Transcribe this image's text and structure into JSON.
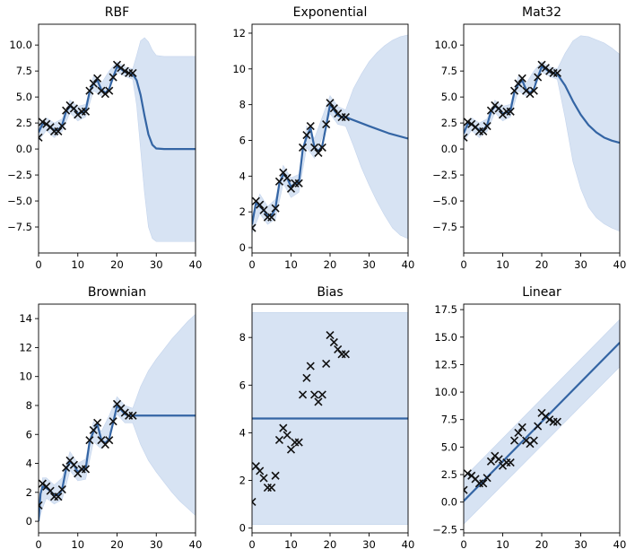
{
  "figure": {
    "layout": "2x3 grid of Gaussian process regression panels",
    "band_color": "#d7e3f3",
    "line_color": "#3465a4",
    "marker_color": "#111111",
    "observations": {
      "x": [
        0,
        1,
        2,
        3,
        4,
        5,
        6,
        7,
        8,
        9,
        10,
        11,
        12,
        13,
        14,
        15,
        16,
        17,
        18,
        19,
        20,
        21,
        22,
        23,
        24
      ],
      "y": [
        1.1,
        2.6,
        2.4,
        2.1,
        1.7,
        1.7,
        2.2,
        3.7,
        4.2,
        3.9,
        3.3,
        3.6,
        3.6,
        5.6,
        6.3,
        6.8,
        5.6,
        5.3,
        5.6,
        6.9,
        8.1,
        7.8,
        7.5,
        7.3,
        7.3
      ]
    }
  },
  "chart_data": [
    {
      "type": "line",
      "title": "RBF",
      "xlim": [
        0,
        40
      ],
      "ylim": [
        -10,
        12
      ],
      "xticks": [
        0,
        10,
        20,
        30,
        40
      ],
      "yticks": [
        -7.5,
        -5.0,
        -2.5,
        0.0,
        2.5,
        5.0,
        7.5,
        10.0
      ],
      "mean": {
        "x": [
          0,
          1,
          2,
          3,
          4,
          5,
          6,
          7,
          8,
          9,
          10,
          11,
          12,
          13,
          14,
          15,
          16,
          17,
          18,
          19,
          20,
          21,
          22,
          23,
          24,
          25,
          26,
          27,
          28,
          29,
          30,
          32,
          34,
          36,
          38,
          40
        ],
        "y": [
          1.6,
          2.4,
          2.4,
          2.1,
          1.8,
          1.8,
          2.3,
          3.6,
          4.1,
          3.9,
          3.4,
          3.5,
          3.7,
          5.5,
          6.3,
          6.6,
          5.7,
          5.4,
          5.8,
          6.9,
          7.9,
          7.7,
          7.4,
          7.3,
          7.2,
          6.6,
          5.2,
          3.2,
          1.4,
          0.4,
          0.05,
          0,
          0,
          0,
          0,
          0
        ]
      },
      "upper": {
        "x": [
          0,
          2,
          4,
          6,
          8,
          10,
          12,
          14,
          16,
          18,
          20,
          22,
          24,
          25,
          26,
          27,
          28,
          29,
          30,
          32,
          34,
          36,
          38,
          40
        ],
        "y": [
          2.4,
          3.0,
          2.5,
          2.9,
          4.7,
          4.1,
          4.3,
          7.0,
          6.3,
          7.5,
          8.4,
          7.9,
          7.7,
          9.0,
          10.4,
          10.7,
          10.3,
          9.5,
          9.0,
          8.9,
          8.9,
          8.9,
          8.9,
          8.9
        ]
      },
      "lower": {
        "x": [
          0,
          2,
          4,
          6,
          8,
          10,
          12,
          14,
          16,
          18,
          20,
          22,
          24,
          25,
          26,
          27,
          28,
          29,
          30,
          32,
          34,
          36,
          38,
          40
        ],
        "y": [
          0.8,
          1.8,
          1.1,
          1.7,
          3.5,
          2.7,
          3.1,
          5.6,
          5.1,
          6.3,
          7.4,
          7.0,
          6.7,
          4.2,
          0.0,
          -4.2,
          -7.5,
          -8.6,
          -8.9,
          -8.9,
          -8.9,
          -8.9,
          -8.9,
          -8.9
        ]
      }
    },
    {
      "type": "line",
      "title": "Exponential",
      "xlim": [
        0,
        40
      ],
      "ylim": [
        -0.3,
        12.5
      ],
      "xticks": [
        0,
        10,
        20,
        30,
        40
      ],
      "yticks": [
        0,
        2,
        4,
        6,
        8,
        10,
        12
      ],
      "mean": {
        "x": [
          0,
          1,
          2,
          3,
          4,
          5,
          6,
          7,
          8,
          9,
          10,
          11,
          12,
          13,
          14,
          15,
          16,
          17,
          18,
          19,
          20,
          21,
          22,
          23,
          24,
          30,
          35,
          40
        ],
        "y": [
          1.3,
          2.5,
          2.3,
          2.1,
          1.8,
          1.8,
          2.2,
          3.6,
          4.1,
          3.9,
          3.4,
          3.6,
          3.6,
          5.5,
          6.2,
          6.7,
          5.6,
          5.4,
          5.7,
          6.8,
          8.0,
          7.7,
          7.4,
          7.3,
          7.3,
          6.8,
          6.4,
          6.1
        ]
      },
      "upper": {
        "x": [
          0,
          2,
          4,
          6,
          8,
          10,
          12,
          14,
          16,
          18,
          20,
          22,
          24,
          26,
          28,
          30,
          32,
          34,
          36,
          38,
          40
        ],
        "y": [
          1.8,
          3.0,
          2.3,
          2.7,
          4.6,
          3.9,
          4.1,
          6.8,
          6.1,
          7.3,
          8.5,
          7.9,
          7.7,
          8.9,
          9.7,
          10.4,
          10.9,
          11.3,
          11.6,
          11.8,
          11.9
        ]
      },
      "lower": {
        "x": [
          0,
          2,
          4,
          6,
          8,
          10,
          12,
          14,
          16,
          18,
          20,
          22,
          24,
          26,
          28,
          30,
          32,
          34,
          36,
          38,
          40
        ],
        "y": [
          0.8,
          1.9,
          1.3,
          1.6,
          3.6,
          2.8,
          3.1,
          5.6,
          5.0,
          6.2,
          7.5,
          6.9,
          6.8,
          5.7,
          4.5,
          3.5,
          2.6,
          1.8,
          1.1,
          0.7,
          0.5
        ]
      }
    },
    {
      "type": "line",
      "title": "Mat32",
      "xlim": [
        0,
        40
      ],
      "ylim": [
        -10,
        12
      ],
      "xticks": [
        0,
        10,
        20,
        30,
        40
      ],
      "yticks": [
        -7.5,
        -5.0,
        -2.5,
        0.0,
        2.5,
        5.0,
        7.5,
        10.0
      ],
      "mean": {
        "x": [
          0,
          1,
          2,
          3,
          4,
          5,
          6,
          7,
          8,
          9,
          10,
          11,
          12,
          13,
          14,
          15,
          16,
          17,
          18,
          19,
          20,
          21,
          22,
          23,
          24,
          26,
          28,
          30,
          32,
          34,
          36,
          38,
          40
        ],
        "y": [
          1.5,
          2.4,
          2.4,
          2.1,
          1.8,
          1.8,
          2.3,
          3.6,
          4.1,
          3.9,
          3.4,
          3.5,
          3.7,
          5.5,
          6.2,
          6.6,
          5.7,
          5.4,
          5.8,
          6.9,
          7.9,
          7.7,
          7.4,
          7.3,
          7.2,
          6.1,
          4.6,
          3.3,
          2.3,
          1.6,
          1.1,
          0.8,
          0.6
        ]
      },
      "upper": {
        "x": [
          0,
          2,
          4,
          6,
          8,
          10,
          12,
          14,
          16,
          18,
          20,
          22,
          24,
          26,
          28,
          30,
          32,
          34,
          36,
          38,
          40
        ],
        "y": [
          2.3,
          3.0,
          2.5,
          2.9,
          4.7,
          4.1,
          4.3,
          7.0,
          6.3,
          7.5,
          8.4,
          7.9,
          7.7,
          9.2,
          10.4,
          10.9,
          10.8,
          10.5,
          10.2,
          9.7,
          9.1
        ]
      },
      "lower": {
        "x": [
          0,
          2,
          4,
          6,
          8,
          10,
          12,
          14,
          16,
          18,
          20,
          22,
          24,
          26,
          28,
          30,
          32,
          34,
          36,
          38,
          40
        ],
        "y": [
          0.7,
          1.8,
          1.1,
          1.7,
          3.5,
          2.7,
          3.1,
          5.6,
          5.1,
          6.3,
          7.4,
          7.0,
          6.7,
          3.0,
          -1.2,
          -3.8,
          -5.6,
          -6.6,
          -7.2,
          -7.6,
          -7.9
        ]
      }
    },
    {
      "type": "line",
      "title": "Brownian",
      "xlim": [
        0,
        40
      ],
      "ylim": [
        -0.8,
        15
      ],
      "xticks": [
        0,
        10,
        20,
        30,
        40
      ],
      "yticks": [
        0,
        2,
        4,
        6,
        8,
        10,
        12,
        14
      ],
      "mean": {
        "x": [
          0,
          0.5,
          1,
          2,
          3,
          4,
          5,
          6,
          7,
          8,
          9,
          10,
          11,
          12,
          13,
          14,
          15,
          16,
          17,
          18,
          19,
          20,
          21,
          22,
          23,
          24,
          40
        ],
        "y": [
          0.0,
          1.9,
          2.4,
          2.3,
          2.1,
          1.8,
          1.8,
          2.2,
          3.6,
          4.1,
          3.9,
          3.4,
          3.6,
          3.6,
          5.5,
          6.2,
          6.7,
          5.6,
          5.4,
          5.7,
          6.8,
          8.0,
          7.7,
          7.4,
          7.3,
          7.3,
          7.3
        ]
      },
      "upper": {
        "x": [
          0,
          1,
          2,
          4,
          6,
          8,
          10,
          12,
          14,
          16,
          18,
          20,
          22,
          24,
          26,
          28,
          30,
          32,
          34,
          36,
          38,
          40
        ],
        "y": [
          0.0,
          3.0,
          3.0,
          2.5,
          3.0,
          4.8,
          4.0,
          4.3,
          6.9,
          6.2,
          7.3,
          8.6,
          8.0,
          7.8,
          9.3,
          10.4,
          11.2,
          11.9,
          12.6,
          13.2,
          13.8,
          14.3
        ]
      },
      "lower": {
        "x": [
          0,
          1,
          2,
          4,
          6,
          8,
          10,
          12,
          14,
          16,
          18,
          20,
          22,
          24,
          26,
          28,
          30,
          32,
          34,
          36,
          38,
          40
        ],
        "y": [
          0.0,
          0.9,
          1.6,
          1.2,
          1.5,
          3.5,
          2.8,
          2.9,
          5.5,
          5.0,
          6.1,
          7.4,
          6.8,
          6.8,
          5.3,
          4.2,
          3.4,
          2.7,
          2.0,
          1.4,
          0.9,
          0.4
        ]
      }
    },
    {
      "type": "line",
      "title": "Bias",
      "xlim": [
        0,
        40
      ],
      "ylim": [
        -0.2,
        9.4
      ],
      "xticks": [
        0,
        10,
        20,
        30,
        40
      ],
      "yticks": [
        0,
        2,
        4,
        6,
        8
      ],
      "mean": {
        "x": [
          0,
          40
        ],
        "y": [
          4.6,
          4.6
        ]
      },
      "upper": {
        "x": [
          0,
          40
        ],
        "y": [
          9.05,
          9.05
        ]
      },
      "lower": {
        "x": [
          0,
          40
        ],
        "y": [
          0.15,
          0.15
        ]
      }
    },
    {
      "type": "line",
      "title": "Linear",
      "xlim": [
        0,
        40
      ],
      "ylim": [
        -2.8,
        18
      ],
      "xticks": [
        0,
        10,
        20,
        30,
        40
      ],
      "yticks": [
        -2.5,
        0.0,
        2.5,
        5.0,
        7.5,
        10.0,
        12.5,
        15.0,
        17.5
      ],
      "mean": {
        "x": [
          0,
          40
        ],
        "y": [
          0.1,
          14.5
        ]
      },
      "upper": {
        "x": [
          0,
          40
        ],
        "y": [
          2.2,
          16.6
        ]
      },
      "lower": {
        "x": [
          0,
          40
        ],
        "y": [
          -2.0,
          12.3
        ]
      }
    }
  ]
}
